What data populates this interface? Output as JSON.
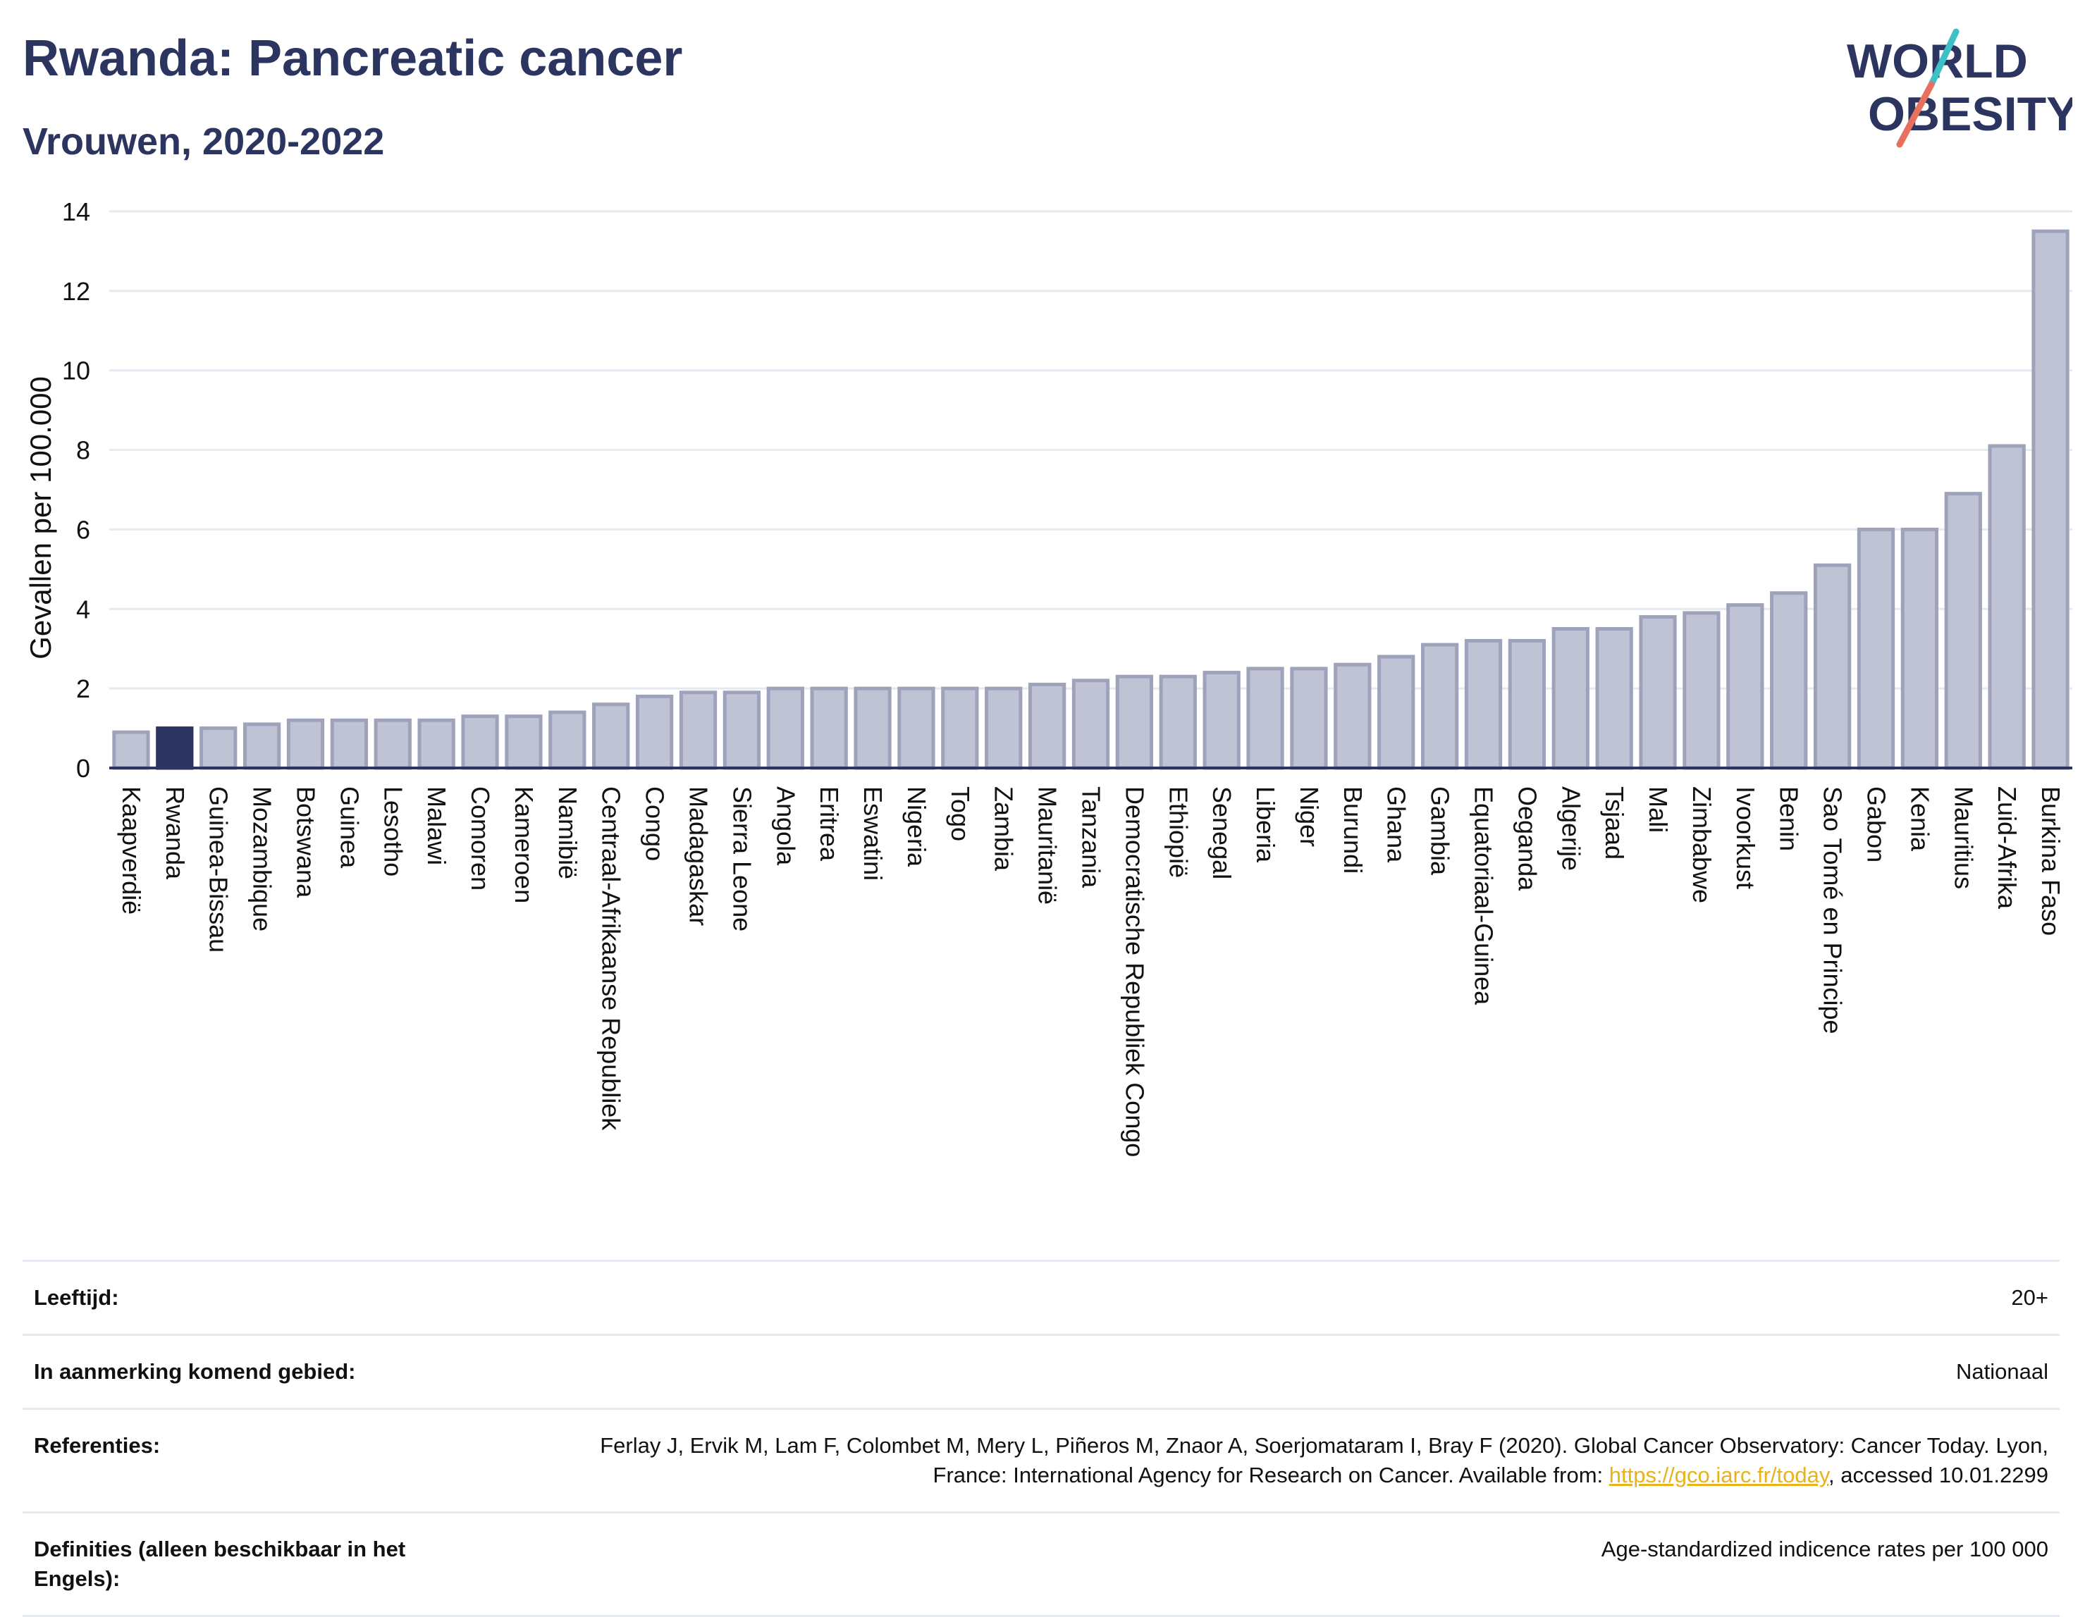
{
  "header": {
    "title": "Rwanda: Pancreatic cancer",
    "subtitle": "Vrouwen, 2020-2022",
    "logo_line1": "WORLD",
    "logo_line2": "OBESITY"
  },
  "colors": {
    "bar": "#bfc3d3",
    "bar_stroke": "#9ea3bb",
    "highlight": "#2b3560",
    "text": "#2b3560",
    "grid": "#e6e9f0",
    "logo_teal": "#3ec1c6",
    "logo_red": "#e8705e"
  },
  "chart_data": {
    "type": "bar",
    "ylabel": "Gevallen per 100.000",
    "ylim": [
      0,
      14
    ],
    "yticks": [
      0,
      2,
      4,
      6,
      8,
      10,
      12,
      14
    ],
    "highlight": "Rwanda",
    "grid": true,
    "categories": [
      "Kaapverdië",
      "Rwanda",
      "Guinea-Bissau",
      "Mozambique",
      "Botswana",
      "Guinea",
      "Lesotho",
      "Malawi",
      "Comoren",
      "Kameroen",
      "Namibië",
      "Centraal-Afrikaanse Republiek",
      "Congo",
      "Madagaskar",
      "Sierra Leone",
      "Angola",
      "Eritrea",
      "Eswatini",
      "Nigeria",
      "Togo",
      "Zambia",
      "Mauritanië",
      "Tanzania",
      "Democratische Republiek Congo",
      "Ethiopië",
      "Senegal",
      "Liberia",
      "Niger",
      "Burundi",
      "Ghana",
      "Gambia",
      "Equatoriaal-Guinea",
      "Oeganda",
      "Algerije",
      "Tsjaad",
      "Mali",
      "Zimbabwe",
      "Ivoorkust",
      "Benin",
      "Sao Tomé en Principe",
      "Gabon",
      "Kenia",
      "Mauritius",
      "Zuid-Afrika",
      "Burkina Faso"
    ],
    "values": [
      0.9,
      1.0,
      1.0,
      1.1,
      1.2,
      1.2,
      1.2,
      1.2,
      1.3,
      1.3,
      1.4,
      1.6,
      1.8,
      1.9,
      1.9,
      2.0,
      2.0,
      2.0,
      2.0,
      2.0,
      2.0,
      2.1,
      2.2,
      2.3,
      2.3,
      2.4,
      2.5,
      2.5,
      2.6,
      2.8,
      3.1,
      3.2,
      3.2,
      3.5,
      3.5,
      3.8,
      3.9,
      4.1,
      4.4,
      5.1,
      6.0,
      6.0,
      6.9,
      8.1,
      13.5
    ]
  },
  "meta": {
    "age_label": "Leeftijd:",
    "age_value": "20+",
    "area_label": "In aanmerking komend gebied:",
    "area_value": "Nationaal",
    "ref_label": "Referenties:",
    "ref_value_1": "Ferlay J, Ervik M, Lam F, Colombet M, Mery L, Piñeros M, Znaor A, Soerjomataram I, Bray F (2020). Global Cancer Observatory: Cancer Today. Lyon, France: International Agency for Research on Cancer. Available from: ",
    "ref_link": "https://gco.iarc.fr/today",
    "ref_value_2": ", accessed 10.01.2299",
    "def_label": "Definities (alleen beschikbaar in het Engels):",
    "def_value": "Age-standardized indicence rates per 100 000"
  }
}
